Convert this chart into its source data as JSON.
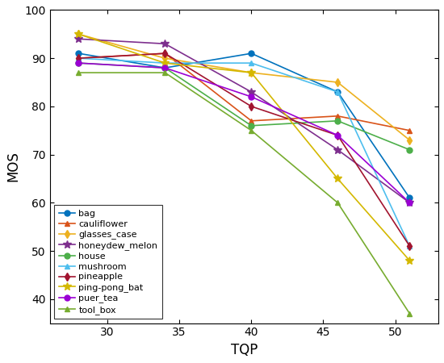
{
  "tqp": [
    28,
    34,
    40,
    46,
    51
  ],
  "series": {
    "bag": {
      "values": [
        91,
        88,
        91,
        83,
        61
      ],
      "color": "#0072BD",
      "marker": "o"
    },
    "cauliflower": {
      "values": [
        90,
        91,
        77,
        78,
        75
      ],
      "color": "#D95319",
      "marker": "^"
    },
    "glasses_case": {
      "values": [
        95,
        90,
        87,
        85,
        73
      ],
      "color": "#EDB120",
      "marker": "d"
    },
    "honeydew_melon": {
      "values": [
        94,
        93,
        83,
        71,
        60
      ],
      "color": "#7E2F8E",
      "marker": "*"
    },
    "house": {
      "values": [
        89,
        88,
        76,
        77,
        71
      ],
      "color": "#77AC30",
      "marker": "o"
    },
    "mushroom": {
      "values": [
        90,
        89,
        89,
        83,
        51
      ],
      "color": "#4DBEEE",
      "marker": "^"
    },
    "pineapple": {
      "values": [
        90,
        91,
        80,
        74,
        51
      ],
      "color": "#A2142F",
      "marker": "d"
    },
    "ping-pong_bat": {
      "values": [
        95,
        89,
        87,
        65,
        48
      ],
      "color": "#EDB120",
      "marker": "*"
    },
    "puer_tea": {
      "values": [
        89,
        88,
        82,
        74,
        60
      ],
      "color": "#7E2F8E",
      "marker": "o"
    },
    "tool_box": {
      "values": [
        87,
        87,
        75,
        60,
        37
      ],
      "color": "#77AC30",
      "marker": "^"
    }
  },
  "xlabel": "TQP",
  "ylabel": "MOS",
  "ylim": [
    35,
    100
  ],
  "xlim": [
    26,
    53
  ],
  "xticks": [
    30,
    35,
    40,
    45,
    50
  ],
  "yticks": [
    40,
    50,
    60,
    70,
    80,
    90,
    100
  ],
  "legend_order": [
    "bag",
    "cauliflower",
    "glasses_case",
    "honeydew_melon",
    "house",
    "mushroom",
    "pineapple",
    "ping-pong_bat",
    "puer_tea",
    "tool_box"
  ]
}
